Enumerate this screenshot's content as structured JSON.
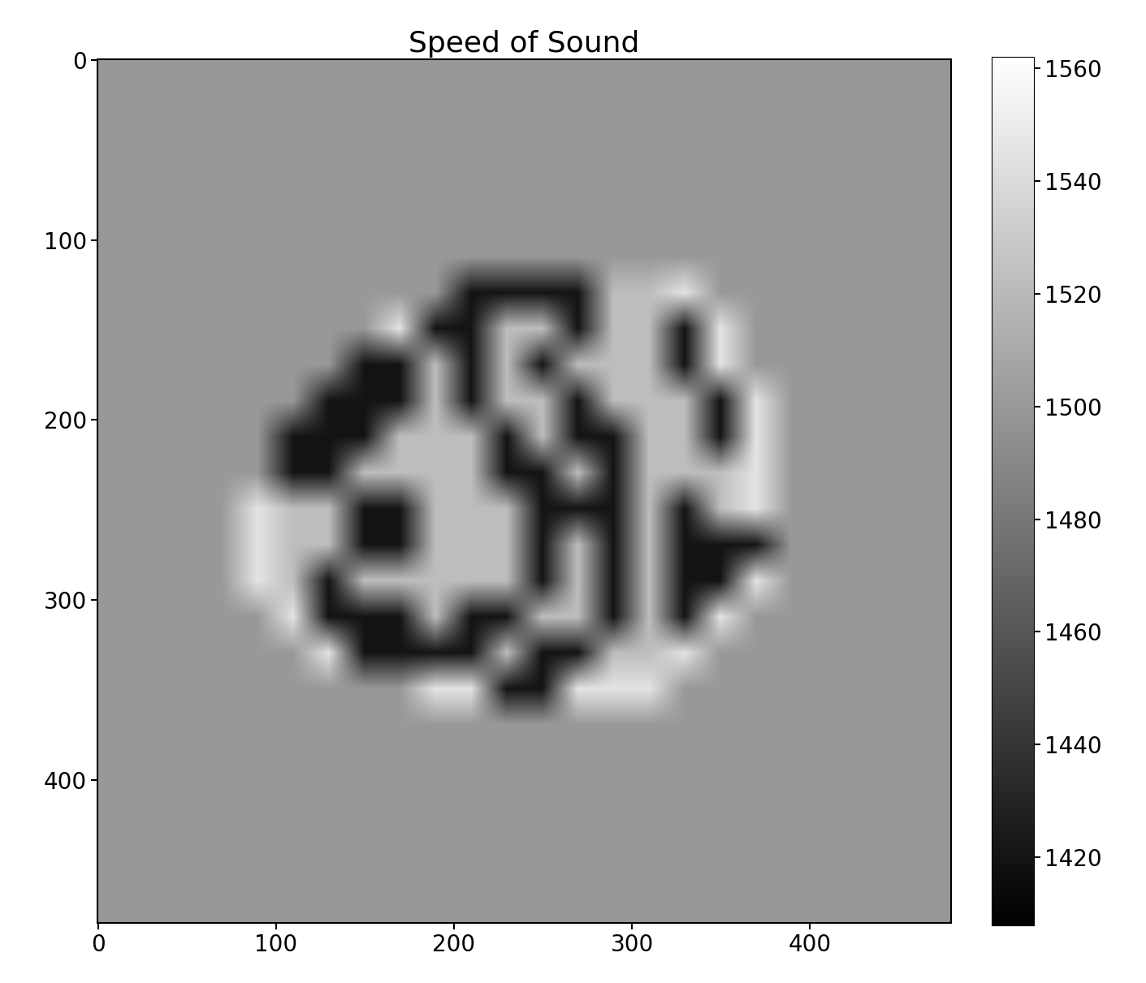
{
  "chart_data": {
    "type": "heatmap",
    "title": "Speed of Sound",
    "xlim": [
      -0.5,
      479.5
    ],
    "ylim": [
      479.5,
      -0.5
    ],
    "xticks": [
      0,
      100,
      200,
      300,
      400
    ],
    "yticks": [
      0,
      100,
      200,
      300,
      400
    ],
    "colorbar_range": [
      1408,
      1562
    ],
    "colorbar_ticks": [
      1420,
      1440,
      1460,
      1480,
      1500,
      1520,
      1540,
      1560
    ],
    "color": "gray",
    "cells": [
      [
        1500,
        1500,
        1500,
        1500,
        1500,
        1500,
        1500,
        1500,
        1500,
        1500,
        1500,
        1500,
        1500,
        1500,
        1500,
        1500,
        1500,
        1500,
        1500,
        1500,
        1500,
        1500,
        1500,
        1500
      ],
      [
        1500,
        1500,
        1500,
        1500,
        1500,
        1500,
        1500,
        1500,
        1500,
        1500,
        1500,
        1500,
        1500,
        1500,
        1500,
        1500,
        1500,
        1500,
        1500,
        1500,
        1500,
        1500,
        1500,
        1500
      ],
      [
        1500,
        1500,
        1500,
        1500,
        1500,
        1500,
        1500,
        1500,
        1500,
        1500,
        1500,
        1500,
        1500,
        1500,
        1500,
        1500,
        1500,
        1500,
        1500,
        1500,
        1500,
        1500,
        1500,
        1500
      ],
      [
        1500,
        1500,
        1500,
        1500,
        1500,
        1500,
        1500,
        1500,
        1500,
        1500,
        1500,
        1500,
        1500,
        1500,
        1500,
        1500,
        1500,
        1500,
        1500,
        1500,
        1500,
        1500,
        1500,
        1500
      ],
      [
        1500,
        1500,
        1500,
        1500,
        1500,
        1500,
        1500,
        1500,
        1500,
        1500,
        1500,
        1500,
        1500,
        1500,
        1500,
        1500,
        1500,
        1500,
        1500,
        1500,
        1500,
        1500,
        1500,
        1500
      ],
      [
        1500,
        1500,
        1500,
        1500,
        1500,
        1500,
        1500,
        1500,
        1500,
        1500,
        1500,
        1500,
        1500,
        1500,
        1500,
        1500,
        1500,
        1500,
        1500,
        1500,
        1500,
        1500,
        1500,
        1500
      ],
      [
        1500,
        1500,
        1500,
        1500,
        1500,
        1500,
        1500,
        1500,
        1500,
        1500,
        1420,
        1420,
        1420,
        1420,
        1522,
        1522,
        1545,
        1500,
        1500,
        1500,
        1500,
        1500,
        1500,
        1500
      ],
      [
        1500,
        1500,
        1500,
        1500,
        1500,
        1500,
        1500,
        1500,
        1545,
        1420,
        1420,
        1522,
        1522,
        1420,
        1522,
        1522,
        1420,
        1545,
        1500,
        1500,
        1500,
        1500,
        1500,
        1500
      ],
      [
        1500,
        1500,
        1500,
        1500,
        1500,
        1500,
        1500,
        1420,
        1420,
        1522,
        1420,
        1522,
        1420,
        1522,
        1522,
        1522,
        1420,
        1545,
        1500,
        1500,
        1500,
        1500,
        1500,
        1500
      ],
      [
        1500,
        1500,
        1500,
        1500,
        1500,
        1500,
        1420,
        1420,
        1420,
        1522,
        1420,
        1522,
        1522,
        1420,
        1522,
        1522,
        1522,
        1420,
        1545,
        1500,
        1500,
        1500,
        1500,
        1500
      ],
      [
        1500,
        1500,
        1500,
        1500,
        1500,
        1420,
        1420,
        1420,
        1522,
        1522,
        1522,
        1420,
        1522,
        1420,
        1420,
        1522,
        1522,
        1420,
        1545,
        1500,
        1500,
        1500,
        1500,
        1500
      ],
      [
        1500,
        1500,
        1500,
        1500,
        1500,
        1420,
        1420,
        1522,
        1522,
        1522,
        1522,
        1420,
        1420,
        1522,
        1420,
        1522,
        1522,
        1522,
        1545,
        1500,
        1500,
        1500,
        1500,
        1500
      ],
      [
        1500,
        1500,
        1500,
        1500,
        1545,
        1522,
        1522,
        1420,
        1420,
        1522,
        1522,
        1522,
        1420,
        1420,
        1420,
        1522,
        1420,
        1522,
        1545,
        1500,
        1500,
        1500,
        1500,
        1500
      ],
      [
        1500,
        1500,
        1500,
        1500,
        1545,
        1522,
        1522,
        1420,
        1420,
        1522,
        1522,
        1522,
        1420,
        1522,
        1420,
        1522,
        1420,
        1420,
        1420,
        1500,
        1500,
        1500,
        1500,
        1500
      ],
      [
        1500,
        1500,
        1500,
        1500,
        1545,
        1522,
        1420,
        1522,
        1522,
        1522,
        1522,
        1522,
        1420,
        1522,
        1420,
        1522,
        1420,
        1420,
        1545,
        1500,
        1500,
        1500,
        1500,
        1500
      ],
      [
        1500,
        1500,
        1500,
        1500,
        1500,
        1545,
        1420,
        1420,
        1420,
        1522,
        1420,
        1420,
        1522,
        1522,
        1420,
        1522,
        1420,
        1545,
        1500,
        1500,
        1500,
        1500,
        1500,
        1500
      ],
      [
        1500,
        1500,
        1500,
        1500,
        1500,
        1500,
        1545,
        1420,
        1420,
        1420,
        1420,
        1522,
        1420,
        1420,
        1522,
        1522,
        1545,
        1500,
        1500,
        1500,
        1500,
        1500,
        1500,
        1500
      ],
      [
        1500,
        1500,
        1500,
        1500,
        1500,
        1500,
        1500,
        1500,
        1500,
        1545,
        1545,
        1420,
        1420,
        1545,
        1545,
        1545,
        1500,
        1500,
        1500,
        1500,
        1500,
        1500,
        1500,
        1500
      ],
      [
        1500,
        1500,
        1500,
        1500,
        1500,
        1500,
        1500,
        1500,
        1500,
        1500,
        1500,
        1500,
        1500,
        1500,
        1500,
        1500,
        1500,
        1500,
        1500,
        1500,
        1500,
        1500,
        1500,
        1500
      ],
      [
        1500,
        1500,
        1500,
        1500,
        1500,
        1500,
        1500,
        1500,
        1500,
        1500,
        1500,
        1500,
        1500,
        1500,
        1500,
        1500,
        1500,
        1500,
        1500,
        1500,
        1500,
        1500,
        1500,
        1500
      ],
      [
        1500,
        1500,
        1500,
        1500,
        1500,
        1500,
        1500,
        1500,
        1500,
        1500,
        1500,
        1500,
        1500,
        1500,
        1500,
        1500,
        1500,
        1500,
        1500,
        1500,
        1500,
        1500,
        1500,
        1500
      ],
      [
        1500,
        1500,
        1500,
        1500,
        1500,
        1500,
        1500,
        1500,
        1500,
        1500,
        1500,
        1500,
        1500,
        1500,
        1500,
        1500,
        1500,
        1500,
        1500,
        1500,
        1500,
        1500,
        1500,
        1500
      ],
      [
        1500,
        1500,
        1500,
        1500,
        1500,
        1500,
        1500,
        1500,
        1500,
        1500,
        1500,
        1500,
        1500,
        1500,
        1500,
        1500,
        1500,
        1500,
        1500,
        1500,
        1500,
        1500,
        1500,
        1500
      ],
      [
        1500,
        1500,
        1500,
        1500,
        1500,
        1500,
        1500,
        1500,
        1500,
        1500,
        1500,
        1500,
        1500,
        1500,
        1500,
        1500,
        1500,
        1500,
        1500,
        1500,
        1500,
        1500,
        1500,
        1500
      ]
    ]
  }
}
